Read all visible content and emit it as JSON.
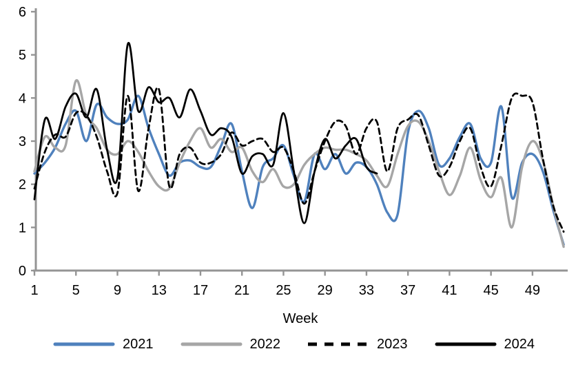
{
  "chart_data": {
    "type": "line",
    "title": "",
    "xlabel": "Week",
    "ylabel": "",
    "ylim": [
      0,
      6
    ],
    "yticks": [
      0,
      1,
      2,
      3,
      4,
      5,
      6
    ],
    "xticks": [
      1,
      5,
      9,
      13,
      17,
      21,
      25,
      29,
      33,
      37,
      41,
      45,
      49
    ],
    "x_range": [
      1,
      52
    ],
    "grid": false,
    "legend_position": "bottom",
    "axis_color": "#949494",
    "series": [
      {
        "name": "2021",
        "color": "#4F81BD",
        "style": "solid",
        "x_start": 1,
        "values": [
          2.25,
          2.5,
          2.85,
          3.4,
          3.7,
          3.0,
          3.85,
          3.55,
          3.4,
          3.5,
          4.05,
          3.3,
          2.7,
          2.2,
          2.5,
          2.55,
          2.4,
          2.4,
          2.9,
          3.4,
          2.3,
          1.45,
          2.4,
          2.6,
          2.9,
          2.2,
          1.6,
          2.7,
          2.35,
          2.7,
          2.25,
          2.5,
          2.4,
          2.0,
          1.35,
          1.3,
          3.2,
          3.7,
          3.3,
          2.45,
          2.6,
          3.1,
          3.4,
          2.6,
          2.5,
          3.8,
          1.7,
          2.5,
          2.7,
          2.3,
          1.4,
          0.6
        ]
      },
      {
        "name": "2022",
        "color": "#A6A6A6",
        "style": "solid",
        "x_start": 1,
        "values": [
          2.3,
          3.1,
          2.85,
          2.9,
          4.4,
          3.6,
          3.3,
          2.8,
          2.7,
          3.0,
          2.75,
          2.3,
          1.95,
          1.9,
          2.5,
          3.0,
          3.3,
          2.85,
          3.05,
          2.75,
          2.85,
          2.3,
          2.05,
          2.35,
          1.95,
          2.0,
          2.45,
          2.7,
          2.85,
          2.8,
          2.8,
          2.7,
          2.55,
          2.2,
          1.95,
          2.7,
          3.35,
          3.45,
          3.0,
          2.3,
          1.75,
          2.2,
          2.85,
          2.1,
          1.7,
          2.15,
          1.0,
          2.4,
          3.0,
          2.55,
          1.5,
          0.55
        ]
      },
      {
        "name": "2023",
        "color": "#000000",
        "style": "dashed",
        "x_start": 1,
        "values": [
          1.9,
          2.75,
          3.15,
          3.1,
          3.65,
          3.6,
          3.1,
          2.3,
          1.8,
          4.05,
          1.85,
          3.3,
          4.2,
          1.95,
          2.7,
          2.85,
          2.5,
          2.5,
          2.7,
          3.2,
          2.9,
          3.0,
          3.05,
          2.75,
          2.85,
          2.3,
          1.55,
          2.3,
          3.0,
          3.45,
          3.35,
          2.7,
          3.3,
          3.45,
          2.3,
          3.3,
          3.5,
          3.6,
          2.9,
          2.2,
          2.4,
          3.0,
          3.3,
          2.4,
          1.95,
          2.9,
          4.0,
          4.05,
          3.9,
          2.6,
          1.5,
          0.9
        ]
      },
      {
        "name": "2024",
        "color": "#000000",
        "style": "solid",
        "x_start": 1,
        "values": [
          1.65,
          3.5,
          3.05,
          3.8,
          4.1,
          3.55,
          4.2,
          2.8,
          2.15,
          5.25,
          3.7,
          4.25,
          3.9,
          4.0,
          3.55,
          4.2,
          3.7,
          3.15,
          3.3,
          3.1,
          2.25,
          2.65,
          2.7,
          2.45,
          3.65,
          2.3,
          1.1,
          2.3,
          3.05,
          2.6,
          2.9,
          3.05,
          2.4,
          2.25
        ]
      }
    ]
  }
}
